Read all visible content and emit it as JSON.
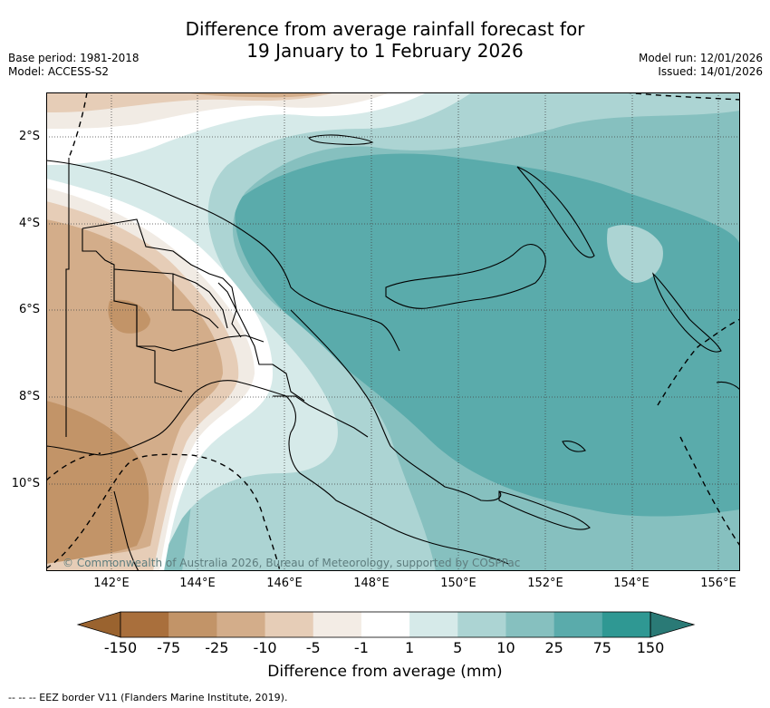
{
  "header": {
    "title_line1": "Difference from average rainfall forecast for",
    "title_line2": "19 January to 1 February 2026",
    "base_period": "Base period: 1981-2018",
    "model": "Model: ACCESS-S2",
    "model_run": "Model run: 12/01/2026",
    "issued": "Issued: 14/01/2026"
  },
  "map": {
    "lat_labels": [
      "2°S",
      "4°S",
      "6°S",
      "8°S",
      "10°S"
    ],
    "lon_labels": [
      "142°E",
      "144°E",
      "146°E",
      "148°E",
      "150°E",
      "152°E",
      "154°E",
      "156°E"
    ],
    "copyright": "© Commonwealth of Australia 2026, Bureau of Meteorology, supported by COSPPac",
    "fills": {
      "dry_150": "#a06a3a",
      "dry_75": "#c29468",
      "dry_25": "#d3ad8a",
      "dry_10": "#e6cdb7",
      "dry_5": "#f1ebe4",
      "neutral": "#ffffff",
      "wet_1": "#d6eae9",
      "wet_5": "#acd4d3",
      "wet_10": "#86c0bf",
      "wet_25": "#5aabab",
      "wet_75": "#339b97"
    }
  },
  "colorbar": {
    "colors": [
      "#a96f3c",
      "#c29468",
      "#d3ad8a",
      "#e6cdb7",
      "#f3ece5",
      "#ffffff",
      "#d6eae9",
      "#acd4d3",
      "#86c0bf",
      "#5aabab",
      "#2f9893"
    ],
    "left_arrow_color": "#9a632f",
    "right_arrow_color": "#2a7a76",
    "ticks": [
      "-150",
      "-75",
      "-25",
      "-10",
      "-5",
      "-1",
      "1",
      "5",
      "10",
      "25",
      "75",
      "150"
    ],
    "title": "Difference from average (mm)"
  },
  "footer": {
    "legend_text": "--  --  -- EEZ border V11 (Flanders Marine Institute, 2019)."
  }
}
